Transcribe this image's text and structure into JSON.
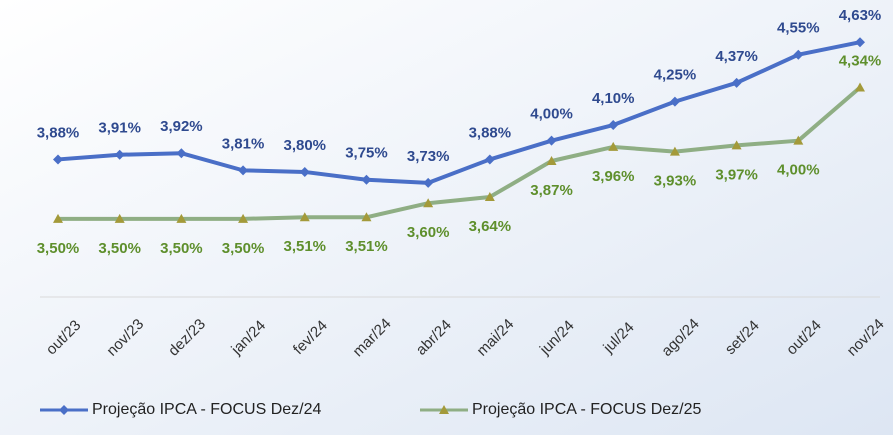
{
  "chart_data": {
    "type": "line",
    "categories": [
      "out/23",
      "nov/23",
      "dez/23",
      "jan/24",
      "fev/24",
      "mar/24",
      "abr/24",
      "mai/24",
      "jun/24",
      "jul/24",
      "ago/24",
      "set/24",
      "out/24",
      "nov/24"
    ],
    "series": [
      {
        "name": "Projeção IPCA - FOCUS Dez/24",
        "color": "#4a6fc7",
        "label_color": "#2f4a8f",
        "marker": "diamond",
        "values": [
          3.88,
          3.91,
          3.92,
          3.81,
          3.8,
          3.75,
          3.73,
          3.88,
          4.0,
          4.1,
          4.25,
          4.37,
          4.55,
          4.63
        ],
        "value_labels": [
          "3,88%",
          "3,91%",
          "3,92%",
          "3,81%",
          "3,80%",
          "3,75%",
          "3,73%",
          "3,88%",
          "4,00%",
          "4,10%",
          "4,25%",
          "4,37%",
          "4,55%",
          "4,63%"
        ]
      },
      {
        "name": "Projeção IPCA - FOCUS Dez/25",
        "color": "#8fae84",
        "label_color": "#5e8f2c",
        "marker": "triangle",
        "values": [
          3.5,
          3.5,
          3.5,
          3.5,
          3.51,
          3.51,
          3.6,
          3.64,
          3.87,
          3.96,
          3.93,
          3.97,
          4.0,
          4.34
        ],
        "value_labels": [
          "3,50%",
          "3,50%",
          "3,50%",
          "3,50%",
          "3,51%",
          "3,51%",
          "3,60%",
          "3,64%",
          "3,87%",
          "3,96%",
          "3,93%",
          "3,97%",
          "4,00%",
          "4,34%"
        ]
      }
    ],
    "ylim": [
      3.0,
      4.9
    ],
    "legend": "bottom"
  }
}
